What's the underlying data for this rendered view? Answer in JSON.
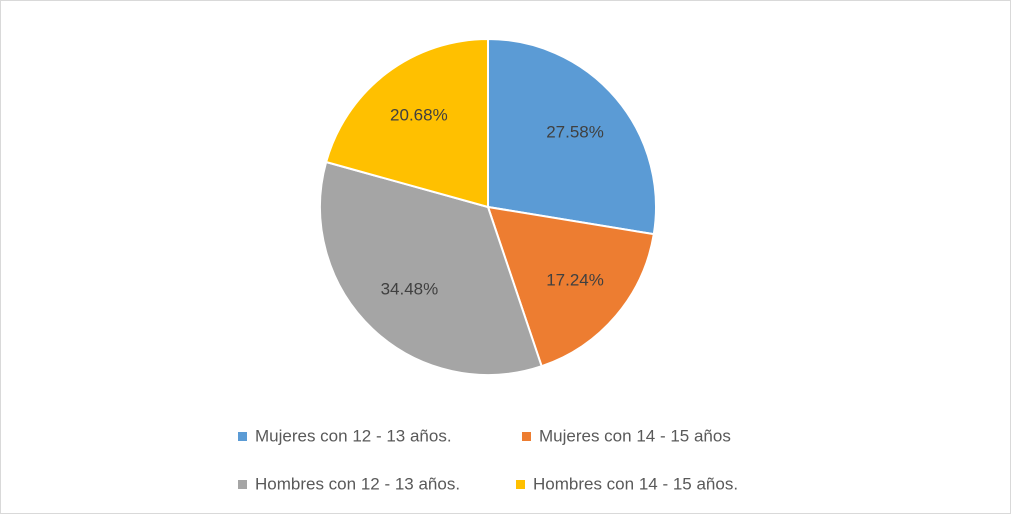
{
  "chart_data": {
    "type": "pie",
    "categories": [
      "Mujeres con 12 - 13 años.",
      "Mujeres con 14 - 15 años",
      "Hombres con 12 - 13 años.",
      "Hombres con 14 - 15 años."
    ],
    "values": [
      27.58,
      17.24,
      34.48,
      20.68
    ],
    "value_labels": [
      "27.58%",
      "17.24%",
      "34.48%",
      "20.68%"
    ],
    "colors": [
      "#5b9bd5",
      "#ed7d31",
      "#a5a5a5",
      "#ffc000"
    ],
    "legend": "bottom"
  }
}
